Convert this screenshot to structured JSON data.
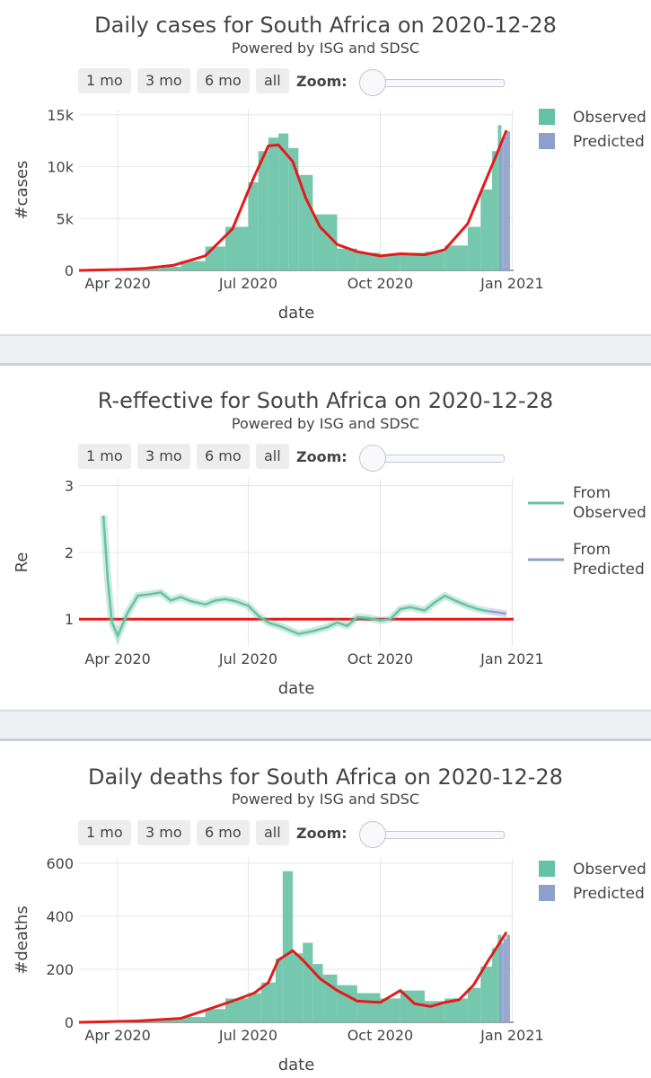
{
  "controls": {
    "buttons": [
      "1 mo",
      "3 mo",
      "6 mo",
      "all"
    ],
    "zoom_label": "Zoom:"
  },
  "colors": {
    "observed": "#66c2a5",
    "predicted": "#8da0cb",
    "fit_line": "#e41a1c",
    "grid": "#e6e6e6",
    "separator": "#eef0f4"
  },
  "chart_data": [
    {
      "type": "bar",
      "title": "Daily cases for South Africa on 2020-12-28",
      "subtitle": "Powered by ISG and SDSC",
      "xlabel": "date",
      "ylabel": "#cases",
      "x_ticks": [
        "Apr 2020",
        "Jul 2020",
        "Oct 2020",
        "Jan 2021"
      ],
      "y_ticks": [
        "0",
        "5k",
        "10k",
        "15k"
      ],
      "y_tick_values": [
        0,
        5000,
        10000,
        15000
      ],
      "ylim": [
        0,
        15500
      ],
      "xlim": [
        "2020-03-05",
        "2021-01-02"
      ],
      "grid": true,
      "legend_position": "top-right",
      "series": [
        {
          "name": "Observed",
          "kind": "bar",
          "x": [
            "2020-03-15",
            "2020-04-01",
            "2020-04-15",
            "2020-05-01",
            "2020-05-15",
            "2020-06-01",
            "2020-06-15",
            "2020-07-01",
            "2020-07-08",
            "2020-07-15",
            "2020-07-22",
            "2020-07-29",
            "2020-08-05",
            "2020-08-15",
            "2020-09-01",
            "2020-09-15",
            "2020-10-01",
            "2020-10-15",
            "2020-11-01",
            "2020-11-15",
            "2020-12-01",
            "2020-12-10",
            "2020-12-18",
            "2020-12-22"
          ],
          "values": [
            50,
            150,
            200,
            350,
            900,
            2300,
            4200,
            8500,
            11500,
            12800,
            13200,
            11800,
            9200,
            5400,
            2100,
            1700,
            1500,
            1700,
            1800,
            2400,
            4200,
            7800,
            11500,
            14000
          ]
        },
        {
          "name": "Predicted",
          "kind": "bar",
          "x": [
            "2020-12-23",
            "2020-12-26",
            "2020-12-28"
          ],
          "values": [
            12500,
            12900,
            13400
          ]
        },
        {
          "name": "fit",
          "kind": "line",
          "x": [
            "2020-03-05",
            "2020-04-01",
            "2020-04-20",
            "2020-05-10",
            "2020-06-01",
            "2020-06-20",
            "2020-07-05",
            "2020-07-15",
            "2020-07-22",
            "2020-08-01",
            "2020-08-10",
            "2020-08-20",
            "2020-09-01",
            "2020-09-15",
            "2020-10-01",
            "2020-10-15",
            "2020-11-01",
            "2020-11-15",
            "2020-12-01",
            "2020-12-10",
            "2020-12-20",
            "2020-12-28"
          ],
          "values": [
            0,
            80,
            200,
            500,
            1400,
            4000,
            9000,
            12000,
            12100,
            10500,
            7000,
            4200,
            2500,
            1800,
            1400,
            1600,
            1500,
            2000,
            4500,
            7500,
            10800,
            13500
          ]
        }
      ],
      "legend": [
        "Observed",
        "Predicted"
      ]
    },
    {
      "type": "line",
      "title": "R-effective for South Africa on 2020-12-28",
      "subtitle": "Powered by ISG and SDSC",
      "xlabel": "date",
      "ylabel": "Re",
      "x_ticks": [
        "Apr 2020",
        "Jul 2020",
        "Oct 2020",
        "Jan 2021"
      ],
      "y_ticks": [
        "1",
        "2",
        "3"
      ],
      "y_tick_values": [
        1,
        2,
        3
      ],
      "ylim": [
        0.6,
        3.1
      ],
      "xlim": [
        "2020-03-05",
        "2021-01-02"
      ],
      "grid": true,
      "legend_position": "top-right",
      "reference_line": 1,
      "series": [
        {
          "name": "From Observed",
          "x": [
            "2020-03-22",
            "2020-03-25",
            "2020-03-28",
            "2020-04-01",
            "2020-04-08",
            "2020-04-15",
            "2020-04-22",
            "2020-05-01",
            "2020-05-08",
            "2020-05-15",
            "2020-05-22",
            "2020-06-01",
            "2020-06-08",
            "2020-06-15",
            "2020-06-22",
            "2020-07-01",
            "2020-07-08",
            "2020-07-15",
            "2020-07-25",
            "2020-08-05",
            "2020-08-15",
            "2020-08-25",
            "2020-09-01",
            "2020-09-08",
            "2020-09-15",
            "2020-09-22",
            "2020-10-01",
            "2020-10-08",
            "2020-10-15",
            "2020-10-22",
            "2020-11-01",
            "2020-11-08",
            "2020-11-15",
            "2020-11-22",
            "2020-12-01",
            "2020-12-08",
            "2020-12-15"
          ],
          "values": [
            2.55,
            1.6,
            0.95,
            0.75,
            1.1,
            1.35,
            1.37,
            1.4,
            1.28,
            1.33,
            1.27,
            1.22,
            1.28,
            1.3,
            1.27,
            1.2,
            1.05,
            0.95,
            0.88,
            0.78,
            0.82,
            0.88,
            0.95,
            0.9,
            1.03,
            1.02,
            0.98,
            1.0,
            1.15,
            1.18,
            1.13,
            1.25,
            1.35,
            1.28,
            1.2,
            1.15,
            1.12
          ]
        },
        {
          "name": "From Predicted",
          "x": [
            "2020-12-15",
            "2020-12-22",
            "2020-12-28"
          ],
          "values": [
            1.12,
            1.1,
            1.08
          ]
        }
      ],
      "legend": [
        "From Observed",
        "From Predicted"
      ]
    },
    {
      "type": "bar",
      "title": "Daily deaths for South Africa on 2020-12-28",
      "subtitle": "Powered by ISG and SDSC",
      "xlabel": "date",
      "ylabel": "#deaths",
      "x_ticks": [
        "Apr 2020",
        "Jul 2020",
        "Oct 2020",
        "Jan 2021"
      ],
      "y_ticks": [
        "0",
        "200",
        "400",
        "600"
      ],
      "y_tick_values": [
        0,
        200,
        400,
        600
      ],
      "ylim": [
        0,
        620
      ],
      "xlim": [
        "2020-03-05",
        "2021-01-02"
      ],
      "grid": true,
      "legend_position": "top-right",
      "series": [
        {
          "name": "Observed",
          "kind": "bar",
          "x": [
            "2020-04-01",
            "2020-04-15",
            "2020-05-01",
            "2020-05-15",
            "2020-06-01",
            "2020-06-15",
            "2020-07-01",
            "2020-07-10",
            "2020-07-20",
            "2020-07-25",
            "2020-08-01",
            "2020-08-08",
            "2020-08-15",
            "2020-08-22",
            "2020-09-01",
            "2020-09-15",
            "2020-10-01",
            "2020-10-15",
            "2020-11-01",
            "2020-11-15",
            "2020-12-01",
            "2020-12-10",
            "2020-12-18",
            "2020-12-22"
          ],
          "values": [
            5,
            10,
            12,
            20,
            50,
            90,
            110,
            150,
            240,
            570,
            260,
            300,
            220,
            180,
            140,
            110,
            90,
            120,
            80,
            90,
            130,
            210,
            280,
            330
          ]
        },
        {
          "name": "Predicted",
          "kind": "bar",
          "x": [
            "2020-12-23",
            "2020-12-26",
            "2020-12-28"
          ],
          "values": [
            300,
            315,
            330
          ]
        },
        {
          "name": "fit",
          "kind": "line",
          "x": [
            "2020-03-05",
            "2020-04-15",
            "2020-05-15",
            "2020-06-01",
            "2020-06-20",
            "2020-07-05",
            "2020-07-15",
            "2020-07-22",
            "2020-08-01",
            "2020-08-08",
            "2020-08-20",
            "2020-09-01",
            "2020-09-15",
            "2020-10-01",
            "2020-10-15",
            "2020-10-25",
            "2020-11-05",
            "2020-11-15",
            "2020-11-25",
            "2020-12-05",
            "2020-12-15",
            "2020-12-28"
          ],
          "values": [
            0,
            5,
            15,
            45,
            80,
            110,
            150,
            235,
            270,
            235,
            165,
            120,
            80,
            75,
            120,
            70,
            60,
            75,
            85,
            140,
            230,
            340
          ]
        }
      ],
      "legend": [
        "Observed",
        "Predicted"
      ]
    }
  ]
}
